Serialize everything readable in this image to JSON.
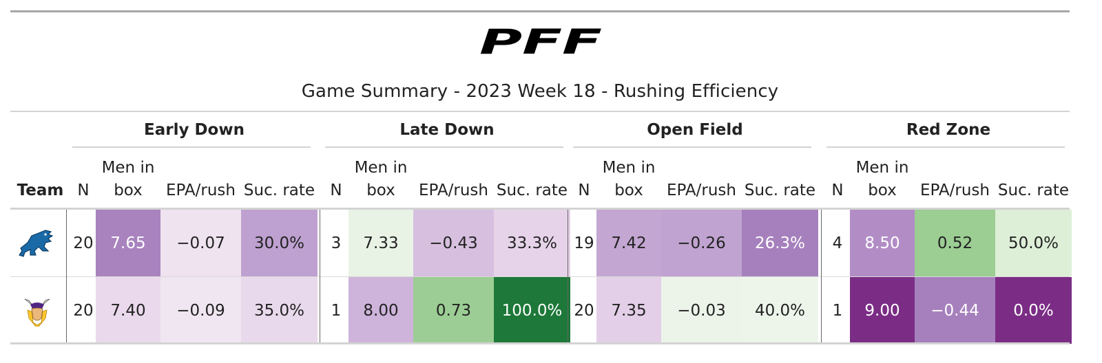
{
  "title": "Game Summary - 2023 Week 18 - Rushing Efficiency",
  "logo_text": "PFF",
  "team_col_label": "Team",
  "groups": [
    {
      "label": "Early Down"
    },
    {
      "label": "Late Down"
    },
    {
      "label": "Open Field"
    },
    {
      "label": "Red Zone"
    }
  ],
  "sub_columns": {
    "n": "N",
    "men_in_box_line1": "Men in",
    "men_in_box_line2": "box",
    "epa": "EPA/rush",
    "suc": "Suc. rate"
  },
  "rows": [
    {
      "team_icon": "detroit-lions-logo-icon",
      "cells": [
        {
          "v": "20",
          "bg": "#ffffff",
          "light": false
        },
        {
          "v": "7.65",
          "bg": "#a883be",
          "light": true
        },
        {
          "v": "−0.07",
          "bg": "#efe3ef",
          "light": false
        },
        {
          "v": "30.0%",
          "bg": "#bea1d0",
          "light": false
        },
        {
          "v": "3",
          "bg": "#ffffff",
          "light": false
        },
        {
          "v": "7.33",
          "bg": "#e8f3e5",
          "light": false
        },
        {
          "v": "−0.43",
          "bg": "#d7bfdf",
          "light": false
        },
        {
          "v": "33.3%",
          "bg": "#e6d3e9",
          "light": false
        },
        {
          "v": "19",
          "bg": "#ffffff",
          "light": false
        },
        {
          "v": "7.42",
          "bg": "#c3a6d1",
          "light": false
        },
        {
          "v": "−0.26",
          "bg": "#c0a3d0",
          "light": false
        },
        {
          "v": "26.3%",
          "bg": "#a580bc",
          "light": true
        },
        {
          "v": "4",
          "bg": "#ffffff",
          "light": false
        },
        {
          "v": "8.50",
          "bg": "#b28dc5",
          "light": true
        },
        {
          "v": "0.52",
          "bg": "#9ccd93",
          "light": false
        },
        {
          "v": "50.0%",
          "bg": "#ddefd7",
          "light": false
        }
      ]
    },
    {
      "team_icon": "minnesota-vikings-logo-icon",
      "cells": [
        {
          "v": "20",
          "bg": "#ffffff",
          "light": false
        },
        {
          "v": "7.40",
          "bg": "#ead9ec",
          "light": false
        },
        {
          "v": "−0.09",
          "bg": "#f0e6f1",
          "light": false
        },
        {
          "v": "35.0%",
          "bg": "#e9d9ec",
          "light": false
        },
        {
          "v": "1",
          "bg": "#ffffff",
          "light": false
        },
        {
          "v": "8.00",
          "bg": "#ceb3db",
          "light": false
        },
        {
          "v": "0.73",
          "bg": "#9ccd94",
          "light": false
        },
        {
          "v": "100.0%",
          "bg": "#1d7839",
          "light": true
        },
        {
          "v": "20",
          "bg": "#ffffff",
          "light": false
        },
        {
          "v": "7.35",
          "bg": "#e3cfe7",
          "light": false
        },
        {
          "v": "−0.03",
          "bg": "#ecf4e9",
          "light": false
        },
        {
          "v": "40.0%",
          "bg": "#edf5ea",
          "light": false
        },
        {
          "v": "1",
          "bg": "#ffffff",
          "light": false
        },
        {
          "v": "9.00",
          "bg": "#7b2d85",
          "light": true
        },
        {
          "v": "−0.44",
          "bg": "#a680bc",
          "light": true
        },
        {
          "v": "0.0%",
          "bg": "#7b2d85",
          "light": true
        }
      ]
    }
  ]
}
